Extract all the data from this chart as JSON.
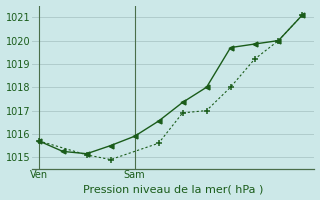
{
  "title": "Pression niveau de la mer( hPa )",
  "background_color": "#cce8e8",
  "grid_color": "#b0cccc",
  "line_color": "#1a5c1a",
  "ylim": [
    1014.5,
    1021.5
  ],
  "yticks": [
    1015,
    1016,
    1017,
    1018,
    1019,
    1020,
    1021
  ],
  "xtick_labels": [
    "Ven",
    "Sam"
  ],
  "xtick_positions": [
    0,
    4
  ],
  "num_xcols": 12,
  "series1_x": [
    0,
    1,
    2,
    3,
    4,
    5,
    6,
    7,
    8,
    9,
    10,
    11
  ],
  "series1_y": [
    1015.7,
    1015.25,
    1015.15,
    1015.5,
    1015.9,
    1016.55,
    1017.35,
    1018.0,
    1019.7,
    1019.85,
    1020.0,
    1021.1
  ],
  "series2_x": [
    0,
    2,
    3,
    5,
    6,
    7,
    8,
    9,
    10,
    11
  ],
  "series2_y": [
    1015.7,
    1015.1,
    1014.9,
    1015.6,
    1016.9,
    1017.0,
    1018.0,
    1019.2,
    1020.0,
    1021.1
  ],
  "vline_x": [
    0,
    4
  ],
  "xlim": [
    -0.3,
    11.5
  ]
}
